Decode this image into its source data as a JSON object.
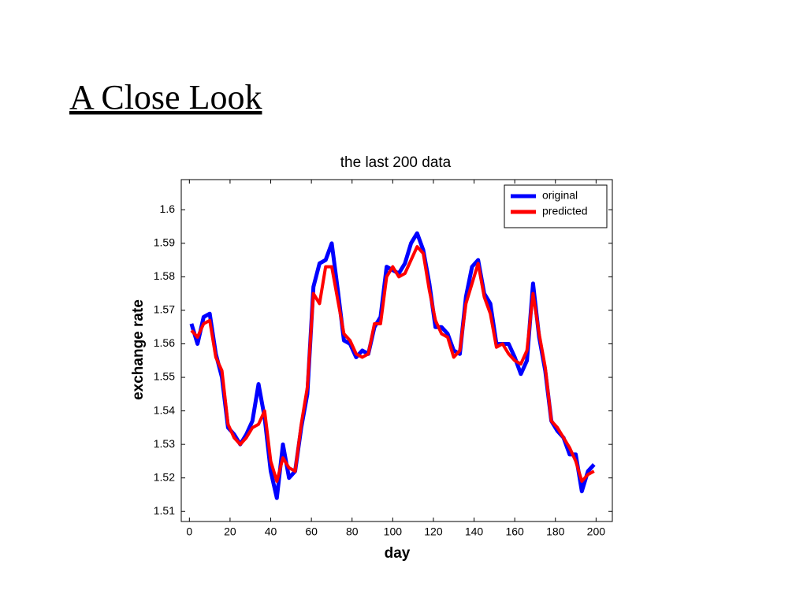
{
  "slide_title": "A Close Look",
  "chart_data": {
    "type": "line",
    "title": "the last 200 data",
    "xlabel": "day",
    "ylabel": "exchange rate",
    "x": [
      1,
      4,
      7,
      10,
      13,
      16,
      19,
      22,
      25,
      28,
      31,
      34,
      37,
      40,
      43,
      46,
      49,
      52,
      55,
      58,
      61,
      64,
      67,
      70,
      73,
      76,
      79,
      82,
      85,
      88,
      91,
      94,
      97,
      100,
      103,
      106,
      109,
      112,
      115,
      118,
      121,
      124,
      127,
      130,
      133,
      136,
      139,
      142,
      145,
      148,
      151,
      154,
      157,
      160,
      163,
      166,
      169,
      172,
      175,
      178,
      181,
      184,
      187,
      190,
      193,
      196,
      199
    ],
    "series": [
      {
        "name": "original",
        "color": "#0000ff",
        "values": [
          1.566,
          1.56,
          1.568,
          1.569,
          1.557,
          1.55,
          1.535,
          1.533,
          1.53,
          1.533,
          1.537,
          1.548,
          1.538,
          1.522,
          1.514,
          1.53,
          1.52,
          1.522,
          1.535,
          1.545,
          1.577,
          1.584,
          1.585,
          1.59,
          1.576,
          1.561,
          1.56,
          1.556,
          1.558,
          1.557,
          1.565,
          1.568,
          1.583,
          1.582,
          1.581,
          1.584,
          1.59,
          1.593,
          1.588,
          1.578,
          1.565,
          1.565,
          1.563,
          1.558,
          1.557,
          1.574,
          1.583,
          1.585,
          1.575,
          1.572,
          1.56,
          1.56,
          1.56,
          1.556,
          1.551,
          1.555,
          1.578,
          1.562,
          1.552,
          1.537,
          1.534,
          1.532,
          1.527,
          1.527,
          1.516,
          1.522,
          1.524
        ]
      },
      {
        "name": "predicted",
        "color": "#ff0000",
        "values": [
          1.564,
          1.562,
          1.566,
          1.567,
          1.556,
          1.552,
          1.536,
          1.532,
          1.53,
          1.532,
          1.535,
          1.536,
          1.54,
          1.525,
          1.519,
          1.526,
          1.523,
          1.522,
          1.536,
          1.547,
          1.575,
          1.572,
          1.583,
          1.583,
          1.573,
          1.563,
          1.561,
          1.557,
          1.556,
          1.557,
          1.566,
          1.566,
          1.58,
          1.583,
          1.58,
          1.581,
          1.585,
          1.589,
          1.587,
          1.576,
          1.567,
          1.563,
          1.562,
          1.556,
          1.558,
          1.572,
          1.578,
          1.584,
          1.574,
          1.569,
          1.559,
          1.56,
          1.557,
          1.555,
          1.554,
          1.558,
          1.575,
          1.563,
          1.553,
          1.537,
          1.535,
          1.532,
          1.529,
          1.525,
          1.519,
          1.521,
          1.522
        ]
      }
    ],
    "xlim": [
      -4,
      208
    ],
    "xticks": [
      0,
      20,
      40,
      60,
      80,
      100,
      120,
      140,
      160,
      180,
      200
    ],
    "ylim": [
      1.507,
      1.609
    ],
    "yticks": [
      1.51,
      1.52,
      1.53,
      1.54,
      1.55,
      1.56,
      1.57,
      1.58,
      1.59,
      1.6
    ],
    "legend": "upper right"
  }
}
